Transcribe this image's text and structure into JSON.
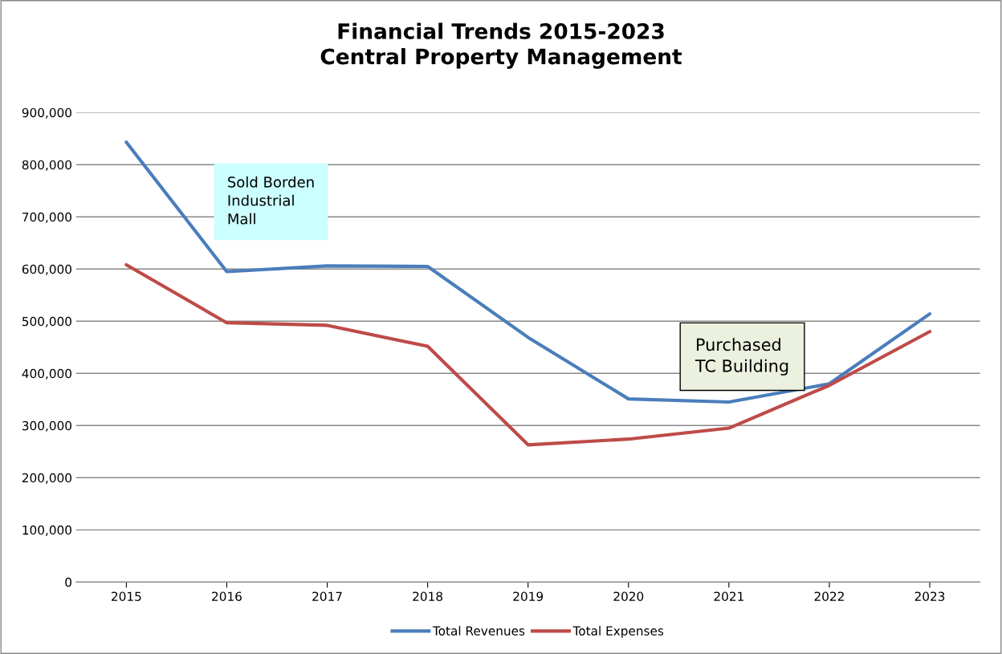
{
  "chart_data": {
    "type": "line",
    "title": "Financial Trends 2015-2023\nCentral Property Management",
    "categories": [
      "2015",
      "2016",
      "2017",
      "2018",
      "2019",
      "2020",
      "2021",
      "2022",
      "2023"
    ],
    "series": [
      {
        "name": "Total Revenues",
        "color": "#4a7ebb",
        "values": [
          843000,
          595000,
          606000,
          605000,
          469000,
          351000,
          345000,
          380000,
          514000
        ]
      },
      {
        "name": "Total Expenses",
        "color": "#be4b48",
        "values": [
          608000,
          497000,
          492000,
          452000,
          263000,
          274000,
          295000,
          377000,
          480000
        ]
      }
    ],
    "ylim": [
      0,
      900000
    ],
    "yticks": [
      {
        "value": 0,
        "label": "0"
      },
      {
        "value": 100000,
        "label": "100,000"
      },
      {
        "value": 200000,
        "label": "200,000"
      },
      {
        "value": 300000,
        "label": "300,000"
      },
      {
        "value": 400000,
        "label": "400,000"
      },
      {
        "value": 500000,
        "label": "500,000"
      },
      {
        "value": 600000,
        "label": "600,000"
      },
      {
        "value": 700000,
        "label": "700,000"
      },
      {
        "value": 800000,
        "label": "800,000"
      },
      {
        "value": 900000,
        "label": "900,000"
      }
    ],
    "grid": "y",
    "legend": "bottom",
    "marker": "none",
    "line_style": "solid",
    "annotations": [
      "Sold Borden\nIndustrial\nMall",
      "Purchased\nTC Building"
    ]
  }
}
